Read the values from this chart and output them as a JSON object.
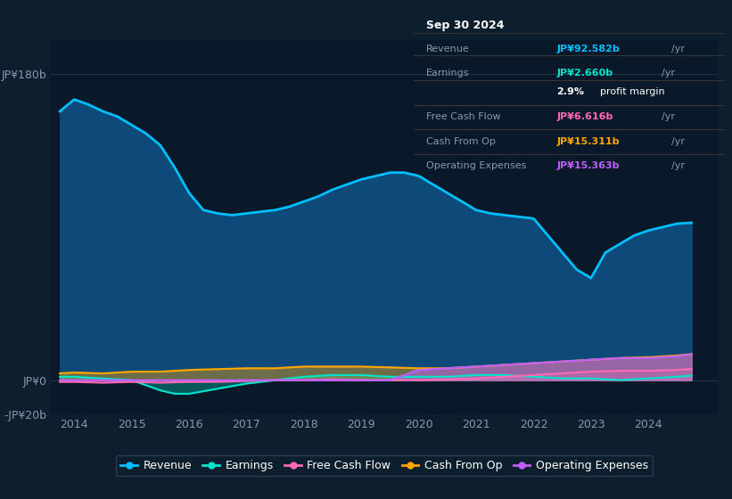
{
  "bg_color": "#0d1f2d",
  "plot_bg_color": "#0a1929",
  "grid_color": "#1a3a4a",
  "title_box": {
    "date": "Sep 30 2024",
    "rows": [
      {
        "label": "Revenue",
        "value": "JP¥92.582b",
        "value_color": "#00bfff",
        "has_yr": true
      },
      {
        "label": "Earnings",
        "value": "JP¥2.660b",
        "value_color": "#00e5cc",
        "has_yr": true
      },
      {
        "label": "",
        "value": "2.9% profit margin",
        "value_color": "#ffffff",
        "has_yr": false
      },
      {
        "label": "Free Cash Flow",
        "value": "JP¥6.616b",
        "value_color": "#ff69b4",
        "has_yr": true
      },
      {
        "label": "Cash From Op",
        "value": "JP¥15.311b",
        "value_color": "#ffa500",
        "has_yr": true
      },
      {
        "label": "Operating Expenses",
        "value": "JP¥15.363b",
        "value_color": "#bf5fff",
        "has_yr": true
      }
    ]
  },
  "ylim": [
    -20,
    200
  ],
  "yticks": [
    -20,
    0,
    180
  ],
  "ytick_labels": [
    "-JP¥20b",
    "JP¥0",
    "JP¥180b"
  ],
  "xticks": [
    2014,
    2015,
    2016,
    2017,
    2018,
    2019,
    2020,
    2021,
    2022,
    2023,
    2024
  ],
  "revenue": {
    "years": [
      2013.75,
      2014.0,
      2014.25,
      2014.5,
      2014.75,
      2015.0,
      2015.25,
      2015.5,
      2015.75,
      2016.0,
      2016.25,
      2016.5,
      2016.75,
      2017.0,
      2017.25,
      2017.5,
      2017.75,
      2018.0,
      2018.25,
      2018.5,
      2018.75,
      2019.0,
      2019.25,
      2019.5,
      2019.75,
      2020.0,
      2020.25,
      2020.5,
      2020.75,
      2021.0,
      2021.25,
      2021.5,
      2021.75,
      2022.0,
      2022.25,
      2022.5,
      2022.75,
      2023.0,
      2023.25,
      2023.5,
      2023.75,
      2024.0,
      2024.25,
      2024.5,
      2024.75
    ],
    "values": [
      158,
      165,
      162,
      158,
      155,
      150,
      145,
      138,
      125,
      110,
      100,
      98,
      97,
      98,
      99,
      100,
      102,
      105,
      108,
      112,
      115,
      118,
      120,
      122,
      122,
      120,
      115,
      110,
      105,
      100,
      98,
      97,
      96,
      95,
      85,
      75,
      65,
      60,
      75,
      80,
      85,
      88,
      90,
      92,
      92.5
    ],
    "color": "#00bfff",
    "fill_color": "#0d4a7a",
    "linewidth": 2.0
  },
  "earnings": {
    "years": [
      2013.75,
      2014.0,
      2014.5,
      2015.0,
      2015.25,
      2015.5,
      2015.75,
      2016.0,
      2016.5,
      2017.0,
      2017.5,
      2018.0,
      2018.5,
      2019.0,
      2019.5,
      2020.0,
      2020.5,
      2021.0,
      2021.5,
      2022.0,
      2022.5,
      2023.0,
      2023.5,
      2024.0,
      2024.5,
      2024.75
    ],
    "values": [
      2,
      2,
      1,
      0,
      -3,
      -6,
      -8,
      -8,
      -5,
      -2,
      0,
      2,
      3,
      3,
      2,
      2,
      2,
      3,
      3,
      2,
      1,
      1,
      0,
      1,
      2,
      2.7
    ],
    "color": "#00e5cc",
    "linewidth": 1.5
  },
  "free_cash_flow": {
    "years": [
      2013.75,
      2014.0,
      2014.5,
      2015.0,
      2015.5,
      2016.0,
      2016.5,
      2017.0,
      2017.5,
      2018.0,
      2018.5,
      2019.0,
      2019.5,
      2020.0,
      2020.5,
      2021.0,
      2021.5,
      2022.0,
      2022.5,
      2023.0,
      2023.5,
      2024.0,
      2024.5,
      2024.75
    ],
    "values": [
      -1,
      -1,
      -1.5,
      -1,
      -1.5,
      -1,
      -1,
      -0.5,
      0,
      0,
      0.5,
      0,
      0,
      0,
      0.5,
      1,
      2,
      3,
      4,
      5,
      5.5,
      5.5,
      6,
      6.6
    ],
    "color": "#ff69b4",
    "linewidth": 1.5
  },
  "cash_from_op": {
    "years": [
      2013.75,
      2014.0,
      2014.5,
      2015.0,
      2015.5,
      2016.0,
      2016.5,
      2017.0,
      2017.5,
      2018.0,
      2018.5,
      2019.0,
      2019.5,
      2020.0,
      2020.5,
      2021.0,
      2021.5,
      2022.0,
      2022.5,
      2023.0,
      2023.5,
      2024.0,
      2024.5,
      2024.75
    ],
    "values": [
      4,
      4.5,
      4,
      5,
      5,
      6,
      6.5,
      7,
      7,
      8,
      8,
      8,
      7.5,
      7,
      7,
      8,
      9,
      10,
      11,
      12,
      13,
      13.5,
      14.5,
      15.3
    ],
    "color": "#ffa500",
    "linewidth": 1.5
  },
  "operating_expenses": {
    "years": [
      2013.75,
      2014.0,
      2014.5,
      2015.0,
      2015.5,
      2016.0,
      2016.5,
      2017.0,
      2017.5,
      2018.0,
      2018.5,
      2019.0,
      2019.5,
      2020.0,
      2020.5,
      2021.0,
      2021.5,
      2022.0,
      2022.5,
      2023.0,
      2023.5,
      2024.0,
      2024.5,
      2024.75
    ],
    "values": [
      0,
      0,
      0,
      0,
      0,
      0,
      0,
      0,
      0,
      0,
      0,
      0,
      0,
      6,
      7,
      8,
      9,
      10,
      11,
      12,
      13,
      13,
      14,
      15.4
    ],
    "color": "#bf5fff",
    "linewidth": 1.5
  },
  "legend_items": [
    {
      "label": "Revenue",
      "color": "#00bfff"
    },
    {
      "label": "Earnings",
      "color": "#00e5cc"
    },
    {
      "label": "Free Cash Flow",
      "color": "#ff69b4"
    },
    {
      "label": "Cash From Op",
      "color": "#ffa500"
    },
    {
      "label": "Operating Expenses",
      "color": "#bf5fff"
    }
  ]
}
